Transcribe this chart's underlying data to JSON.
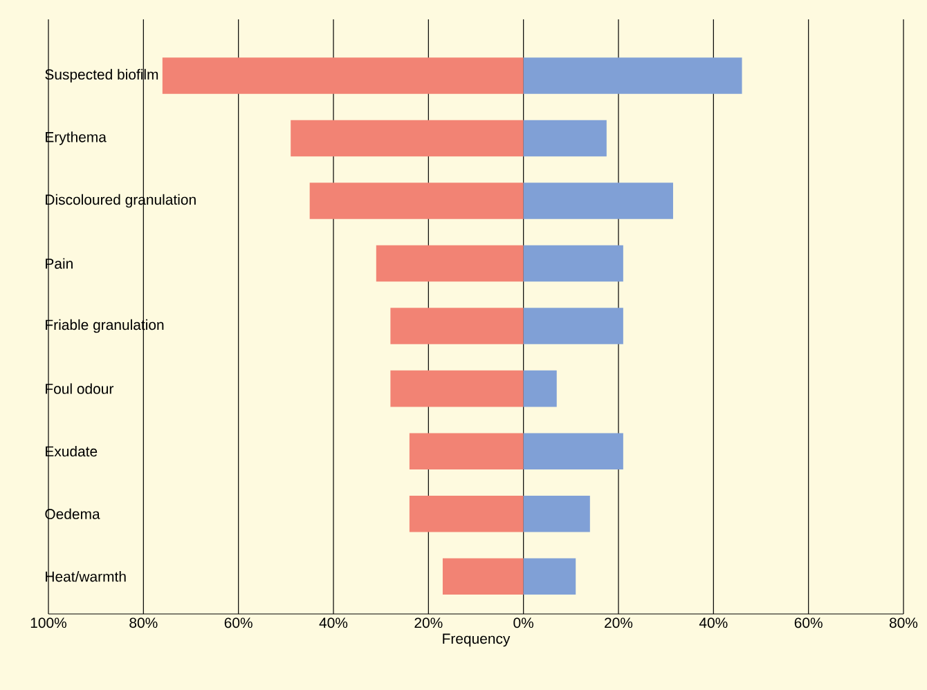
{
  "chart_data": {
    "type": "bar",
    "orientation": "horizontal",
    "xlabel": "Frequency",
    "categories": [
      "Suspected biofilm",
      "Erythema",
      "Discoloured granulation",
      "Pain",
      "Friable granulation",
      "Foul odour",
      "Exudate",
      "Oedema",
      "Heat/warmth"
    ],
    "series": [
      {
        "color": "#f28374",
        "values": [
          -76,
          -49,
          -45,
          -31,
          -28,
          -28,
          -24,
          -24,
          -17
        ]
      },
      {
        "color": "#80a0d6",
        "values": [
          46,
          17.5,
          31.5,
          21,
          21,
          7,
          21,
          14,
          11
        ]
      }
    ],
    "xlim": [
      -100,
      80
    ],
    "xticks": [
      {
        "value": -100,
        "label": "100%"
      },
      {
        "value": -80,
        "label": "80%"
      },
      {
        "value": -60,
        "label": "60%"
      },
      {
        "value": -40,
        "label": "40%"
      },
      {
        "value": -20,
        "label": "20%"
      },
      {
        "value": 0,
        "label": "0%"
      },
      {
        "value": 20,
        "label": "20%"
      },
      {
        "value": 40,
        "label": "40%"
      },
      {
        "value": 60,
        "label": "60%"
      },
      {
        "value": 80,
        "label": "80%"
      }
    ],
    "grid": "x",
    "stacked": true
  }
}
